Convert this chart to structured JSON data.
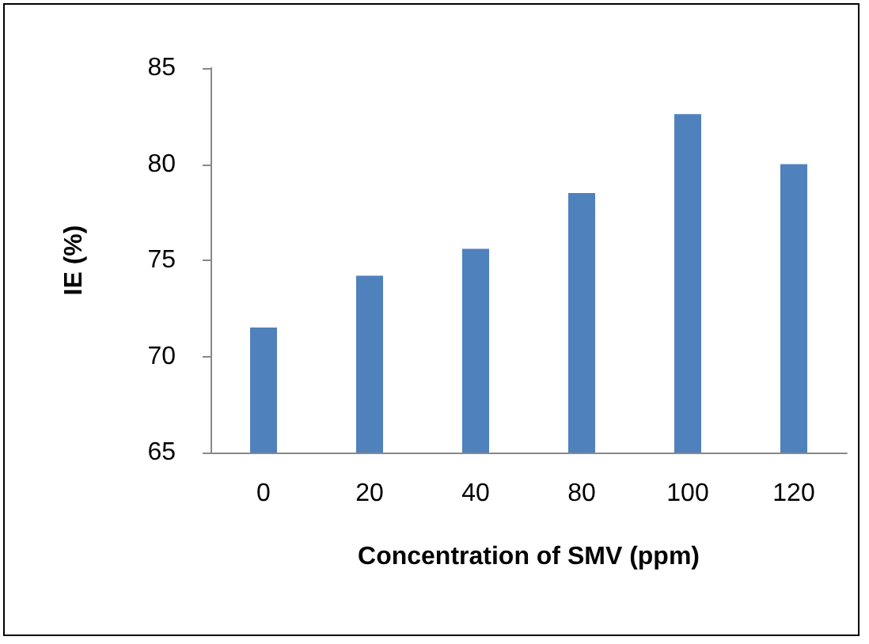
{
  "chart_data": {
    "type": "bar",
    "xlabel": "Concentration of SMV (ppm)",
    "ylabel": "IE (%)",
    "categories": [
      "0",
      "20",
      "40",
      "80",
      "100",
      "120"
    ],
    "series": [
      {
        "color": "#4f81bd",
        "values": [
          71.5,
          74.2,
          75.6,
          78.5,
          82.6,
          80.0
        ]
      }
    ],
    "ylim": [
      65,
      85
    ],
    "yticks": [
      65,
      70,
      75,
      80,
      85
    ]
  }
}
